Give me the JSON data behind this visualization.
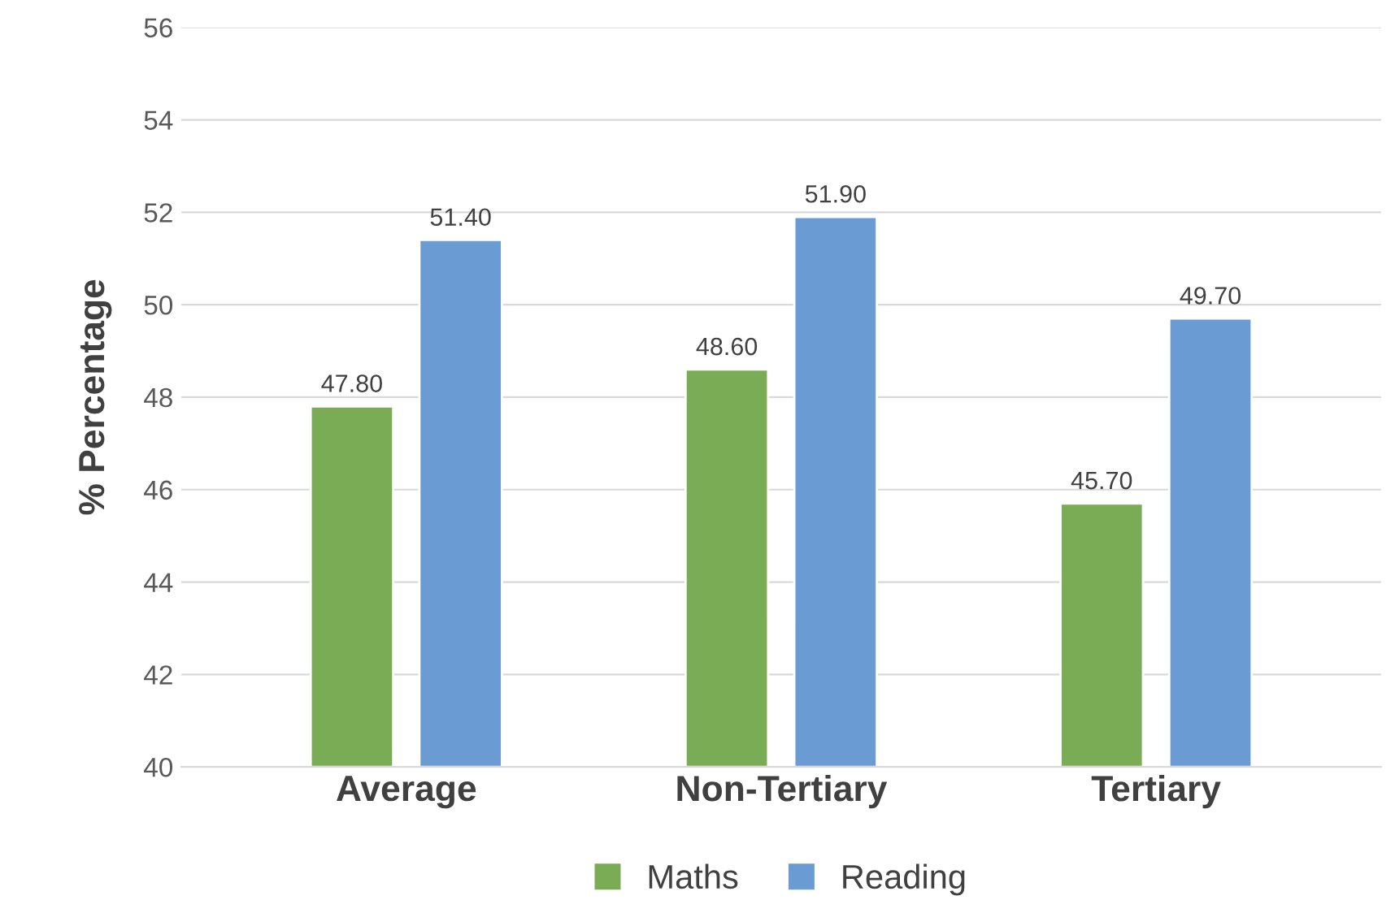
{
  "chart_data": {
    "type": "bar",
    "ylabel": "% Percentage",
    "categories": [
      "Average",
      "Non-Tertiary",
      "Tertiary"
    ],
    "series": [
      {
        "name": "Maths",
        "color": "#7aab55",
        "values": [
          47.8,
          48.6,
          45.7
        ],
        "value_labels": [
          "47.80",
          "48.60",
          "45.70"
        ]
      },
      {
        "name": "Reading",
        "color": "#6a9bd3",
        "values": [
          51.4,
          51.9,
          49.7
        ],
        "value_labels": [
          "51.40",
          "51.90",
          "49.70"
        ]
      }
    ],
    "ylim": [
      40,
      56
    ],
    "yticks": [
      40,
      42,
      44,
      46,
      48,
      50,
      52,
      54,
      56
    ],
    "grid": "y",
    "legend": "bottom"
  }
}
